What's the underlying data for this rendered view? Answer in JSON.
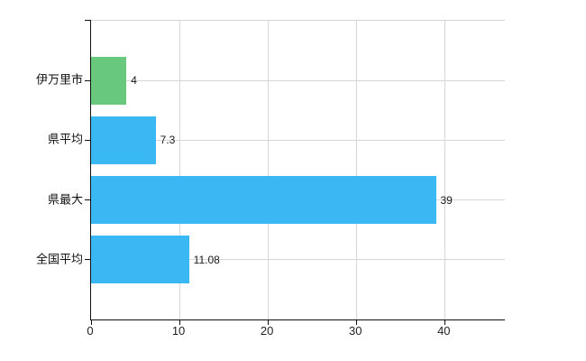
{
  "chart_data": {
    "type": "bar",
    "orientation": "horizontal",
    "title": "",
    "xlabel": "",
    "ylabel": "",
    "categories": [
      "伊万里市",
      "県平均",
      "県最大",
      "全国平均"
    ],
    "values": [
      4,
      7.3,
      39,
      11.08
    ],
    "value_labels": [
      "4",
      "7.3",
      "39",
      "11.08"
    ],
    "bar_colors": [
      "#68c87d",
      "#3ab8f3",
      "#3ab8f3",
      "#3ab8f3"
    ],
    "xlim": [
      0,
      46.8
    ],
    "x_ticks": [
      0,
      10,
      20,
      30,
      40
    ],
    "grid": true,
    "legend": false,
    "background_color": "#ffffff",
    "gridline_color": "#d6d6d6",
    "axis_color": "#111111"
  }
}
